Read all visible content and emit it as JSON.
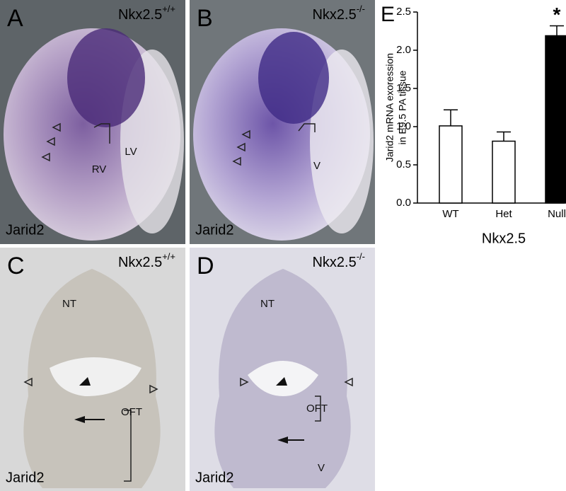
{
  "panels": [
    {
      "letter": "A",
      "gene": "Nkx2.5",
      "genotype": "+/+",
      "stain": "Jarid2",
      "labels": [
        "RV",
        "LV"
      ]
    },
    {
      "letter": "B",
      "gene": "Nkx2.5",
      "genotype": "-/-",
      "stain": "Jarid2",
      "labels": [
        "V"
      ]
    },
    {
      "letter": "C",
      "gene": "Nkx2.5",
      "genotype": "+/+",
      "stain": "Jarid2",
      "labels": [
        "NT",
        "OFT"
      ]
    },
    {
      "letter": "D",
      "gene": "Nkx2.5",
      "genotype": "-/-",
      "stain": "Jarid2",
      "labels": [
        "NT",
        "OFT",
        "V"
      ]
    }
  ],
  "chart_data": {
    "type": "bar",
    "letter": "E",
    "y_label": [
      "Jarid2 mRNA exoression",
      "in E9.5 PA tissue"
    ],
    "x_label": "Nkx2.5",
    "categories": [
      "WT",
      "Het",
      "Null"
    ],
    "values": [
      1.01,
      0.81,
      2.19
    ],
    "errors": [
      0.21,
      0.12,
      0.13
    ],
    "colors": [
      "#ffffff",
      "#ffffff",
      "#000000"
    ],
    "annotation": {
      "category": 2,
      "text": "*"
    },
    "ylim": [
      0,
      2.5
    ],
    "yticks": [
      {
        "value": 0,
        "label": "0.0"
      },
      0.5,
      {
        "value": 1,
        "label": "1.0"
      },
      1.5,
      {
        "value": 2,
        "label": "2.0"
      },
      2.5
    ]
  }
}
